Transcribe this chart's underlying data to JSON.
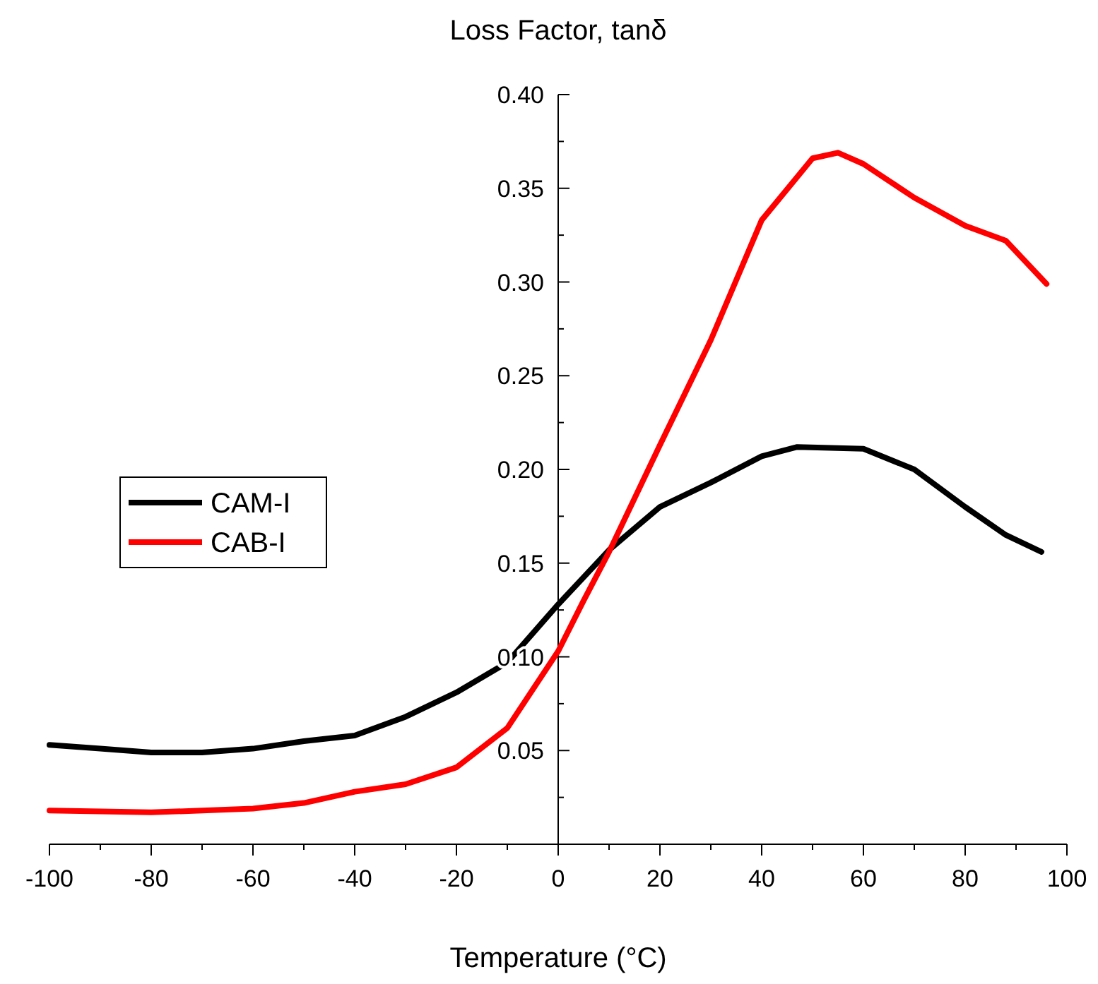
{
  "chart_data": {
    "type": "line",
    "ylabel": "Loss Factor, tanδ",
    "xlabel": "Temperature (°C)",
    "xlim": [
      -100,
      100
    ],
    "ylim": [
      0,
      0.4
    ],
    "xticks": [
      -100,
      -80,
      -60,
      -40,
      -20,
      0,
      20,
      40,
      60,
      80,
      100
    ],
    "yticks": [
      {
        "value": 0,
        "label": null
      },
      {
        "value": 0.05,
        "label": "0.05"
      },
      {
        "value": 0.1,
        "label": "0.10"
      },
      {
        "value": 0.15,
        "label": "0.15"
      },
      {
        "value": 0.2,
        "label": "0.20"
      },
      {
        "value": 0.25,
        "label": "0.25"
      },
      {
        "value": 0.3,
        "label": "0.30"
      },
      {
        "value": 0.35,
        "label": "0.35"
      },
      {
        "value": 0.4,
        "label": "0.40"
      }
    ],
    "legend": "left",
    "grid": false,
    "marker": "none",
    "line_style": "solid",
    "series": [
      {
        "name": "CAM-I",
        "color": "#000000",
        "x": [
          -100,
          -90,
          -80,
          -70,
          -60,
          -50,
          -40,
          -30,
          -20,
          -10,
          0,
          10,
          20,
          30,
          40,
          47,
          60,
          70,
          80,
          88,
          95
        ],
        "values": [
          0.053,
          0.051,
          0.049,
          0.049,
          0.051,
          0.055,
          0.058,
          0.068,
          0.081,
          0.097,
          0.128,
          0.157,
          0.18,
          0.193,
          0.207,
          0.212,
          0.211,
          0.2,
          0.18,
          0.165,
          0.156
        ]
      },
      {
        "name": "CAB-I",
        "color": "#ff0000",
        "x": [
          -100,
          -80,
          -60,
          -50,
          -40,
          -30,
          -20,
          -10,
          0,
          5,
          10,
          20,
          30,
          40,
          50,
          55,
          60,
          70,
          80,
          88,
          96
        ],
        "values": [
          0.018,
          0.017,
          0.019,
          0.022,
          0.028,
          0.032,
          0.041,
          0.062,
          0.103,
          0.13,
          0.156,
          0.213,
          0.269,
          0.333,
          0.366,
          0.369,
          0.363,
          0.345,
          0.33,
          0.322,
          0.299
        ]
      }
    ]
  }
}
